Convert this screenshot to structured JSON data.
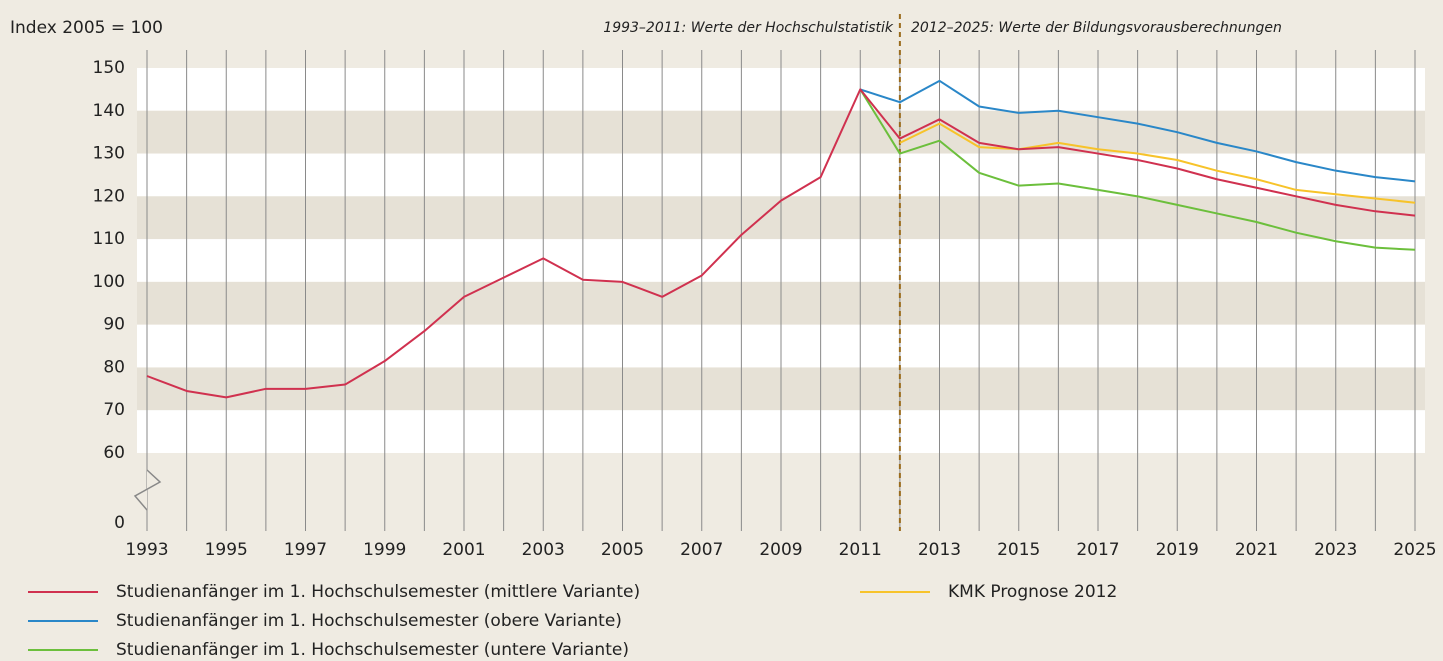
{
  "chart_data": {
    "type": "line",
    "y_label": "Index 2005 = 100",
    "annotations": [
      "1993–2011: Werte der Hochschulstatistik",
      "2012–2025: Werte der Bildungsvorausberechnungen"
    ],
    "vline": 2012,
    "x": [
      1993,
      1994,
      1995,
      1996,
      1997,
      1998,
      1999,
      2000,
      2001,
      2002,
      2003,
      2004,
      2005,
      2006,
      2007,
      2008,
      2009,
      2010,
      2011,
      2012,
      2013,
      2014,
      2015,
      2016,
      2017,
      2018,
      2019,
      2020,
      2021,
      2022,
      2023,
      2024,
      2025
    ],
    "xlim": [
      1993,
      2025
    ],
    "xticks": [
      1993,
      1995,
      1997,
      1999,
      2001,
      2003,
      2005,
      2007,
      2009,
      2011,
      2013,
      2015,
      2017,
      2019,
      2021,
      2023,
      2025
    ],
    "ylim": [
      60,
      150
    ],
    "axis_break": true,
    "yticks": [
      0,
      60,
      70,
      80,
      90,
      100,
      110,
      120,
      130,
      140,
      150
    ],
    "grid": true,
    "series": [
      {
        "name": "Studienanfänger im 1. Hochschulsemester (mittlere Variante)",
        "color": "#d0314f",
        "values": [
          78,
          74.5,
          73,
          75,
          75,
          76,
          81.5,
          88.5,
          96.5,
          101,
          105.5,
          100.5,
          100,
          96.5,
          101.5,
          111,
          119,
          124.5,
          145,
          133.5,
          138,
          132.5,
          131,
          131.5,
          130,
          128.5,
          126.5,
          124,
          122,
          120,
          118,
          116.5,
          115.5
        ]
      },
      {
        "name": "Studienanfänger im 1. Hochschulsemester (obere Variante)",
        "color": "#2a87c8",
        "values": [
          null,
          null,
          null,
          null,
          null,
          null,
          null,
          null,
          null,
          null,
          null,
          null,
          null,
          null,
          null,
          null,
          null,
          null,
          145,
          142,
          147,
          141,
          139.5,
          140,
          138.5,
          137,
          135,
          132.5,
          130.5,
          128,
          126,
          124.5,
          123.5
        ]
      },
      {
        "name": "Studienanfänger im 1. Hochschulsemester (untere Variante)",
        "color": "#6cbf3c",
        "values": [
          null,
          null,
          null,
          null,
          null,
          null,
          null,
          null,
          null,
          null,
          null,
          null,
          null,
          null,
          null,
          null,
          null,
          null,
          145,
          130,
          133,
          125.5,
          122.5,
          123,
          121.5,
          120,
          118,
          116,
          114,
          111.5,
          109.5,
          108,
          107.5
        ]
      },
      {
        "name": "KMK Prognose 2012",
        "color": "#f7c32a",
        "values": [
          null,
          null,
          null,
          null,
          null,
          null,
          null,
          null,
          null,
          null,
          null,
          null,
          null,
          null,
          null,
          null,
          null,
          null,
          null,
          132.5,
          137,
          131.5,
          131,
          132.5,
          131,
          130,
          128.5,
          126,
          124,
          121.5,
          120.5,
          119.5,
          118.5
        ]
      }
    ]
  }
}
